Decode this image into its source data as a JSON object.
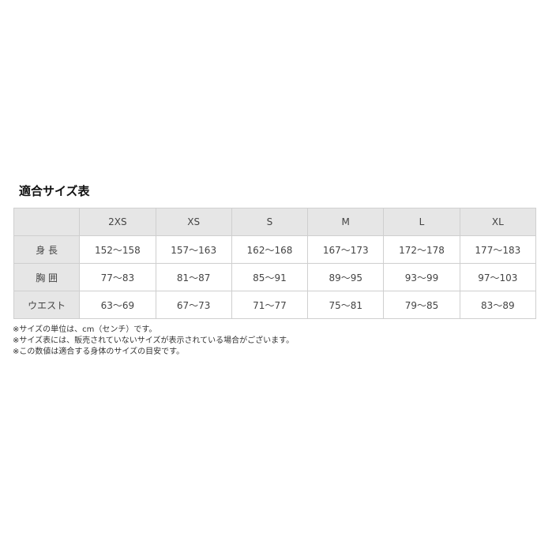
{
  "title": "適合サイズ表",
  "table": {
    "headers": [
      "",
      "2XS",
      "XS",
      "S",
      "M",
      "L",
      "XL"
    ],
    "rows": [
      {
        "label": "身 長",
        "values": [
          "152～158",
          "157～163",
          "162～168",
          "167～173",
          "172～178",
          "177～183"
        ]
      },
      {
        "label": "胸 囲",
        "values": [
          "77～83",
          "81～87",
          "85～91",
          "89～95",
          "93～99",
          "97～103"
        ]
      },
      {
        "label": "ウエスト",
        "values": [
          "63～69",
          "67～73",
          "71～77",
          "75～81",
          "79～85",
          "83～89"
        ]
      }
    ]
  },
  "notes": [
    "※サイズの単位は、cm（センチ）です。",
    "※サイズ表には、販売されていないサイズが表示されている場合がございます。",
    "※この数値は適合する身体のサイズの目安です。"
  ]
}
